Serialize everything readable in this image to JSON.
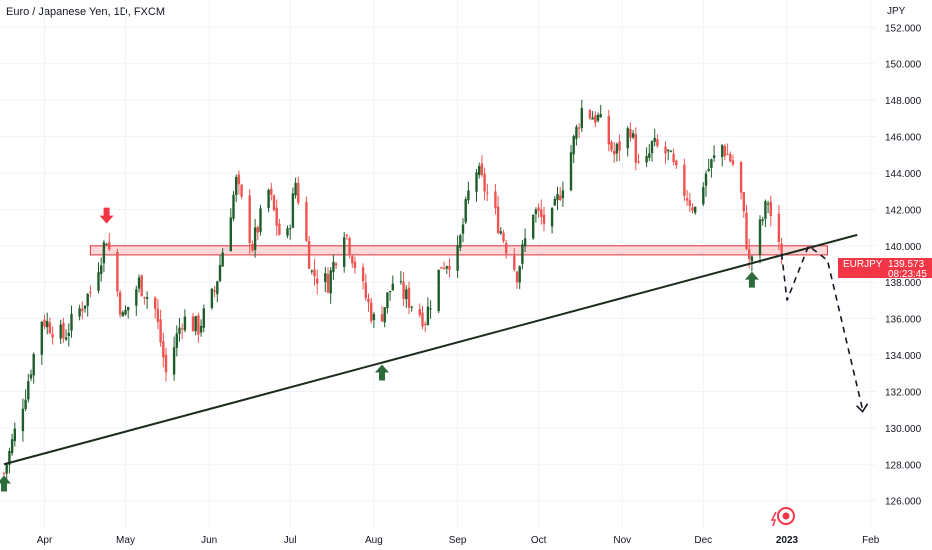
{
  "header": {
    "title": "Euro / Japanese Yen, 1D, FXCM",
    "currency": "JPY"
  },
  "price_badge": {
    "symbol": "EURJPY",
    "price": "139.573",
    "countdown": "08:23:45"
  },
  "colors": {
    "up": "#26a69a",
    "up_dark": "#1f5e2a",
    "down": "#ef5350",
    "zone_fill": "#f7c9cb",
    "zone_stroke": "#e0323c",
    "trendline": "#1c2b1c",
    "arrow_up": "#2e6b3a",
    "arrow_down": "#f23645",
    "badge_bg": "#f23645"
  },
  "chart_data": {
    "type": "candlestick",
    "title": "Euro / Japanese Yen, 1D, FXCM",
    "ylabel": "JPY",
    "ylim": [
      124.5,
      153.5
    ],
    "y_ticks": [
      "152.000",
      "150.000",
      "148.000",
      "146.000",
      "144.000",
      "142.000",
      "140.000",
      "138.000",
      "136.000",
      "134.000",
      "132.000",
      "130.000",
      "128.000",
      "126.000"
    ],
    "x_ticks": [
      {
        "label": "Apr",
        "day": 15
      },
      {
        "label": "May",
        "day": 45
      },
      {
        "label": "Jun",
        "day": 76
      },
      {
        "label": "Jul",
        "day": 106
      },
      {
        "label": "Aug",
        "day": 137
      },
      {
        "label": "Sep",
        "day": 168
      },
      {
        "label": "Oct",
        "day": 198
      },
      {
        "label": "Nov",
        "day": 229
      },
      {
        "label": "Dec",
        "day": 259
      },
      {
        "label": "2023",
        "day": 290,
        "bold": true
      },
      {
        "label": "Feb",
        "day": 321
      }
    ],
    "anchors": [
      [
        0,
        127.5
      ],
      [
        8,
        132.0
      ],
      [
        14,
        136.0
      ],
      [
        22,
        135.0
      ],
      [
        32,
        137.5
      ],
      [
        38,
        140.5
      ],
      [
        44,
        136.0
      ],
      [
        50,
        138.0
      ],
      [
        56,
        136.5
      ],
      [
        60,
        133.0
      ],
      [
        66,
        136.0
      ],
      [
        72,
        135.5
      ],
      [
        78,
        137.5
      ],
      [
        86,
        143.5
      ],
      [
        92,
        140.0
      ],
      [
        98,
        143.0
      ],
      [
        104,
        139.5
      ],
      [
        108,
        143.5
      ],
      [
        114,
        138.5
      ],
      [
        120,
        138.0
      ],
      [
        126,
        141.0
      ],
      [
        132,
        138.0
      ],
      [
        138,
        135.5
      ],
      [
        144,
        138.0
      ],
      [
        150,
        137.0
      ],
      [
        156,
        136.0
      ],
      [
        162,
        139.0
      ],
      [
        168,
        139.5
      ],
      [
        174,
        144.5
      ],
      [
        180,
        142.5
      ],
      [
        186,
        140.0
      ],
      [
        190,
        138.5
      ],
      [
        196,
        142.0
      ],
      [
        202,
        141.0
      ],
      [
        208,
        144.0
      ],
      [
        214,
        147.5
      ],
      [
        220,
        147.0
      ],
      [
        226,
        145.0
      ],
      [
        232,
        146.5
      ],
      [
        236,
        143.5
      ],
      [
        240,
        145.5
      ],
      [
        246,
        145.0
      ],
      [
        250,
        143.5
      ],
      [
        256,
        142.0
      ],
      [
        260,
        144.0
      ],
      [
        266,
        145.5
      ],
      [
        272,
        144.0
      ],
      [
        276,
        139.0
      ],
      [
        279,
        140.5
      ],
      [
        283,
        142.5
      ],
      [
        286,
        140.0
      ],
      [
        288,
        139.57
      ]
    ],
    "resistance_zone": {
      "low": 139.5,
      "high": 140.0,
      "start_day": 32,
      "end_day": 305
    },
    "trendline": {
      "start": [
        0,
        128.0
      ],
      "end": [
        316,
        140.6
      ]
    },
    "projection_path": [
      [
        288,
        139.57
      ],
      [
        290,
        137.0
      ],
      [
        298,
        140.0
      ],
      [
        305,
        139.2
      ],
      [
        318,
        131.0
      ]
    ],
    "signal_arrows": [
      {
        "type": "down",
        "day": 38,
        "price": 141.0
      },
      {
        "type": "up",
        "day": 0,
        "price": 127.6
      },
      {
        "type": "up",
        "day": 140,
        "price": 133.7
      },
      {
        "type": "up",
        "day": 277,
        "price": 138.8
      }
    ]
  }
}
